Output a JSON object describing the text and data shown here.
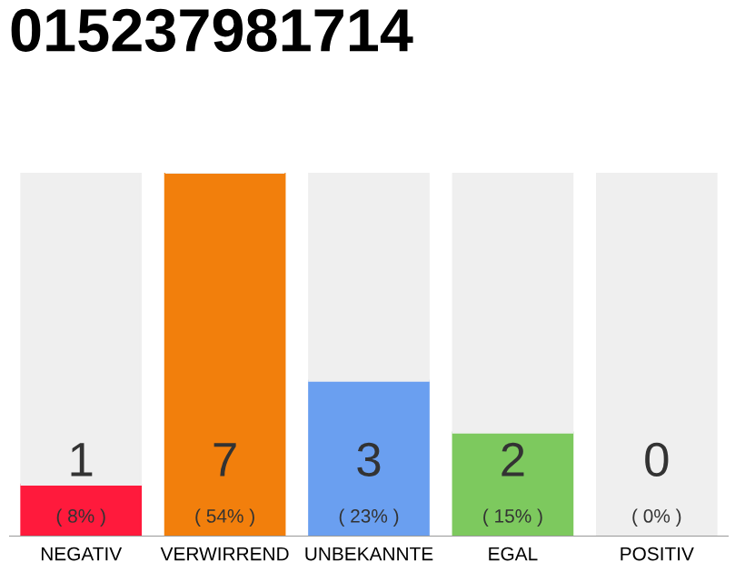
{
  "chart_data": {
    "type": "bar",
    "title": "015237981714",
    "stacked": true,
    "categories": [
      "NEGATIV",
      "VERWIRREND",
      "UNBEKANNTE",
      "EGAL",
      "POSITIV"
    ],
    "series": [
      {
        "colors": [
          "#ff1a3c",
          "#f27f0c",
          "#6a9ff0",
          "#7dc95e",
          "#cccccc"
        ],
        "values": [
          1,
          7,
          3,
          2,
          0
        ],
        "value_labels": [
          "1\n( 8% )",
          "7\n( 54% )",
          "3\n( 23% )",
          "2\n( 15% )",
          "0\n( 0% )"
        ]
      },
      {
        "color": "#efefef",
        "values": [
          6,
          0,
          4,
          5,
          7
        ]
      }
    ],
    "ylim": [
      0,
      7
    ],
    "grid": false,
    "legend": false
  }
}
